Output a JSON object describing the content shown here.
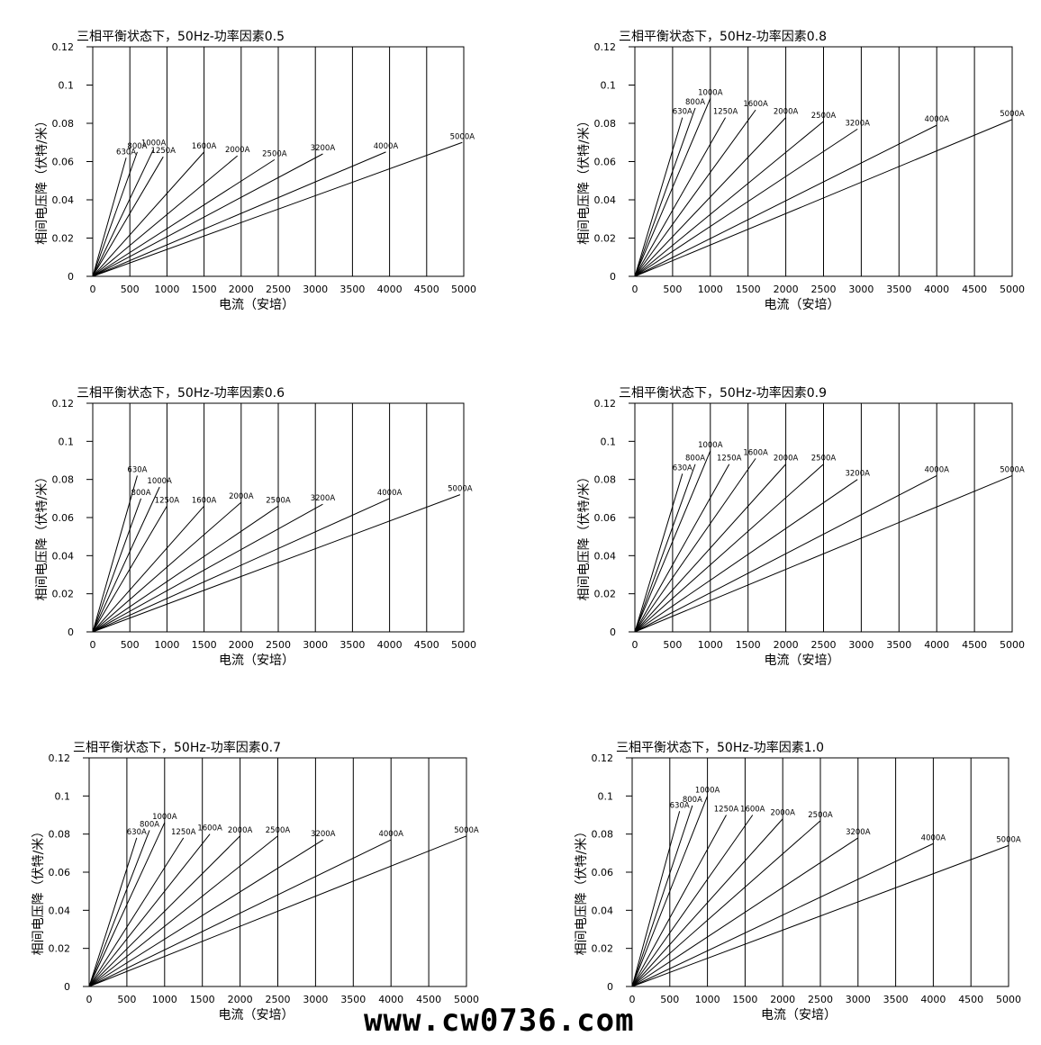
{
  "watermark": "www.cw0736.com",
  "chart_data": [
    {
      "type": "line",
      "title": "三相平衡状态下，50Hz-功率因素0.5",
      "xlabel": "电流（安培）",
      "ylabel": "相间电压降（伏特/米）",
      "xlim": [
        0,
        5000
      ],
      "ylim": [
        0,
        0.12
      ],
      "xticks": [
        0,
        500,
        1000,
        1500,
        2000,
        2500,
        3000,
        3500,
        4000,
        4500,
        5000
      ],
      "xtick_labels": [
        "0",
        "500",
        "1000",
        "1500",
        "2000",
        "2500",
        "3000",
        "3500",
        "4000",
        "4500",
        "5000"
      ],
      "yticks": [
        0,
        0.02,
        0.04,
        0.06,
        0.08,
        0.1,
        0.12
      ],
      "ytick_labels": [
        "0",
        "0.02",
        "0.04",
        "0.06",
        "0.08",
        "0.1",
        "0.12"
      ],
      "grid": "vertical",
      "series": [
        {
          "name": "630A",
          "x": [
            0,
            450
          ],
          "y": [
            0,
            0.062
          ]
        },
        {
          "name": "800A",
          "x": [
            0,
            600
          ],
          "y": [
            0,
            0.065
          ]
        },
        {
          "name": "1000A",
          "x": [
            0,
            820
          ],
          "y": [
            0,
            0.0665
          ]
        },
        {
          "name": "1250A",
          "x": [
            0,
            950
          ],
          "y": [
            0,
            0.0625
          ]
        },
        {
          "name": "1600A",
          "x": [
            0,
            1500
          ],
          "y": [
            0,
            0.065
          ]
        },
        {
          "name": "2000A",
          "x": [
            0,
            1950
          ],
          "y": [
            0,
            0.063
          ]
        },
        {
          "name": "2500A",
          "x": [
            0,
            2450
          ],
          "y": [
            0,
            0.061
          ]
        },
        {
          "name": "3200A",
          "x": [
            0,
            3100
          ],
          "y": [
            0,
            0.064
          ]
        },
        {
          "name": "4000A",
          "x": [
            0,
            3950
          ],
          "y": [
            0,
            0.065
          ]
        },
        {
          "name": "5000A",
          "x": [
            0,
            4980
          ],
          "y": [
            0,
            0.07
          ]
        }
      ]
    },
    {
      "type": "line",
      "title": "三相平衡状态下，50Hz-功率因素0.8",
      "xlabel": "电流（安培）",
      "ylabel": "相间电压降（伏特/米）",
      "xlim": [
        0,
        5000
      ],
      "ylim": [
        0,
        0.12
      ],
      "xticks": [
        0,
        500,
        1000,
        1500,
        2000,
        2500,
        3000,
        3500,
        4000,
        4500,
        5000
      ],
      "xtick_labels": [
        "0",
        "500",
        "1000",
        "1500",
        "2000",
        "2500",
        "3000",
        "3500",
        "4000",
        "4500",
        "5000"
      ],
      "yticks": [
        0,
        0.02,
        0.04,
        0.06,
        0.08,
        0.1,
        0.12
      ],
      "ytick_labels": [
        "0",
        "0.02",
        "0.04",
        "0.06",
        "0.08",
        "0.1",
        "0.12"
      ],
      "grid": "vertical",
      "series": [
        {
          "name": "630A",
          "x": [
            0,
            630
          ],
          "y": [
            0,
            0.083
          ]
        },
        {
          "name": "800A",
          "x": [
            0,
            800
          ],
          "y": [
            0,
            0.088
          ]
        },
        {
          "name": "1000A",
          "x": [
            0,
            1000
          ],
          "y": [
            0,
            0.093
          ]
        },
        {
          "name": "1250A",
          "x": [
            0,
            1200
          ],
          "y": [
            0,
            0.083
          ]
        },
        {
          "name": "1600A",
          "x": [
            0,
            1600
          ],
          "y": [
            0,
            0.087
          ]
        },
        {
          "name": "2000A",
          "x": [
            0,
            2000
          ],
          "y": [
            0,
            0.083
          ]
        },
        {
          "name": "2500A",
          "x": [
            0,
            2500
          ],
          "y": [
            0,
            0.081
          ]
        },
        {
          "name": "3200A",
          "x": [
            0,
            2950
          ],
          "y": [
            0,
            0.077
          ]
        },
        {
          "name": "4000A",
          "x": [
            0,
            4000
          ],
          "y": [
            0,
            0.079
          ]
        },
        {
          "name": "5000A",
          "x": [
            0,
            5000
          ],
          "y": [
            0,
            0.082
          ]
        }
      ]
    },
    {
      "type": "line",
      "title": "三相平衡状态下，50Hz-功率因素0.6",
      "xlabel": "电流（安培）",
      "ylabel": "相间电压降（伏特/米）",
      "xlim": [
        0,
        5000
      ],
      "ylim": [
        0,
        0.12
      ],
      "xticks": [
        0,
        500,
        1000,
        1500,
        2000,
        2500,
        3000,
        3500,
        4000,
        4500,
        5000
      ],
      "xtick_labels": [
        "0",
        "500",
        "1000",
        "1500",
        "2000",
        "2500",
        "3000",
        "3500",
        "4000",
        "4500",
        "5000"
      ],
      "yticks": [
        0,
        0.02,
        0.04,
        0.06,
        0.08,
        0.1,
        0.12
      ],
      "ytick_labels": [
        "0",
        "0.02",
        "0.04",
        "0.06",
        "0.08",
        "0.1",
        "0.12"
      ],
      "grid": "vertical",
      "series": [
        {
          "name": "630A",
          "x": [
            0,
            600
          ],
          "y": [
            0,
            0.082
          ]
        },
        {
          "name": "800A",
          "x": [
            0,
            650
          ],
          "y": [
            0,
            0.07
          ]
        },
        {
          "name": "1000A",
          "x": [
            0,
            900
          ],
          "y": [
            0,
            0.076
          ]
        },
        {
          "name": "1250A",
          "x": [
            0,
            1000
          ],
          "y": [
            0,
            0.066
          ]
        },
        {
          "name": "1600A",
          "x": [
            0,
            1500
          ],
          "y": [
            0,
            0.066
          ]
        },
        {
          "name": "2000A",
          "x": [
            0,
            2000
          ],
          "y": [
            0,
            0.068
          ]
        },
        {
          "name": "2500A",
          "x": [
            0,
            2500
          ],
          "y": [
            0,
            0.066
          ]
        },
        {
          "name": "3200A",
          "x": [
            0,
            3100
          ],
          "y": [
            0,
            0.067
          ]
        },
        {
          "name": "4000A",
          "x": [
            0,
            4000
          ],
          "y": [
            0,
            0.07
          ]
        },
        {
          "name": "5000A",
          "x": [
            0,
            4950
          ],
          "y": [
            0,
            0.072
          ]
        }
      ]
    },
    {
      "type": "line",
      "title": "三相平衡状态下，50Hz-功率因素0.9",
      "xlabel": "电流（安培）",
      "ylabel": "相间电压降（伏特/米）",
      "xlim": [
        0,
        5000
      ],
      "ylim": [
        0,
        0.12
      ],
      "xticks": [
        0,
        500,
        1000,
        1500,
        2000,
        2500,
        3000,
        3500,
        4000,
        4500,
        5000
      ],
      "xtick_labels": [
        "0",
        "500",
        "1000",
        "1500",
        "2000",
        "2500",
        "3000",
        "3500",
        "4000",
        "4500",
        "5000"
      ],
      "yticks": [
        0,
        0.02,
        0.04,
        0.06,
        0.08,
        0.1,
        0.12
      ],
      "ytick_labels": [
        "0",
        "0.02",
        "0.04",
        "0.06",
        "0.08",
        "0.1",
        "0.12"
      ],
      "grid": "vertical",
      "series": [
        {
          "name": "630A",
          "x": [
            0,
            630
          ],
          "y": [
            0,
            0.083
          ]
        },
        {
          "name": "800A",
          "x": [
            0,
            800
          ],
          "y": [
            0,
            0.088
          ]
        },
        {
          "name": "1000A",
          "x": [
            0,
            1000
          ],
          "y": [
            0,
            0.095
          ]
        },
        {
          "name": "1250A",
          "x": [
            0,
            1250
          ],
          "y": [
            0,
            0.088
          ]
        },
        {
          "name": "1600A",
          "x": [
            0,
            1600
          ],
          "y": [
            0,
            0.091
          ]
        },
        {
          "name": "2000A",
          "x": [
            0,
            2000
          ],
          "y": [
            0,
            0.088
          ]
        },
        {
          "name": "2500A",
          "x": [
            0,
            2500
          ],
          "y": [
            0,
            0.088
          ]
        },
        {
          "name": "3200A",
          "x": [
            0,
            2950
          ],
          "y": [
            0,
            0.08
          ]
        },
        {
          "name": "4000A",
          "x": [
            0,
            4000
          ],
          "y": [
            0,
            0.082
          ]
        },
        {
          "name": "5000A",
          "x": [
            0,
            5000
          ],
          "y": [
            0,
            0.082
          ]
        }
      ]
    },
    {
      "type": "line",
      "title": "三相平衡状态下，50Hz-功率因素0.7",
      "xlabel": "电流（安培）",
      "ylabel": "相间电压降（伏特/米）",
      "xlim": [
        0,
        5000
      ],
      "ylim": [
        0,
        0.12
      ],
      "xticks": [
        0,
        500,
        1000,
        1500,
        2000,
        2500,
        3000,
        3500,
        4000,
        4500,
        5000
      ],
      "xtick_labels": [
        "0",
        "500",
        "1000",
        "1500",
        "2000",
        "2500",
        "3000",
        "3500",
        "4000",
        "4500",
        "5000"
      ],
      "yticks": [
        0,
        0.02,
        0.04,
        0.06,
        0.08,
        0.1,
        0.12
      ],
      "ytick_labels": [
        "0",
        "0.02",
        "0.04",
        "0.06",
        "0.08",
        "0.1",
        "0.12"
      ],
      "grid": "vertical",
      "series": [
        {
          "name": "630A",
          "x": [
            0,
            630
          ],
          "y": [
            0,
            0.078
          ]
        },
        {
          "name": "800A",
          "x": [
            0,
            800
          ],
          "y": [
            0,
            0.082
          ]
        },
        {
          "name": "1000A",
          "x": [
            0,
            1000
          ],
          "y": [
            0,
            0.086
          ]
        },
        {
          "name": "1250A",
          "x": [
            0,
            1250
          ],
          "y": [
            0,
            0.078
          ]
        },
        {
          "name": "1600A",
          "x": [
            0,
            1600
          ],
          "y": [
            0,
            0.08
          ]
        },
        {
          "name": "2000A",
          "x": [
            0,
            2000
          ],
          "y": [
            0,
            0.079
          ]
        },
        {
          "name": "2500A",
          "x": [
            0,
            2500
          ],
          "y": [
            0,
            0.079
          ]
        },
        {
          "name": "3200A",
          "x": [
            0,
            3100
          ],
          "y": [
            0,
            0.077
          ]
        },
        {
          "name": "4000A",
          "x": [
            0,
            4000
          ],
          "y": [
            0,
            0.077
          ]
        },
        {
          "name": "5000A",
          "x": [
            0,
            5000
          ],
          "y": [
            0,
            0.079
          ]
        }
      ]
    },
    {
      "type": "line",
      "title": "三相平衡状态下，50Hz-功率因素1.0",
      "xlabel": "电流（安培）",
      "ylabel": "相间电压降（伏特/米）",
      "xlim": [
        0,
        5000
      ],
      "ylim": [
        0,
        0.12
      ],
      "xticks": [
        0,
        500,
        1000,
        1500,
        2000,
        2500,
        3000,
        3500,
        4000,
        4500,
        5000
      ],
      "xtick_labels": [
        "0",
        "500",
        "1000",
        "1500",
        "2000",
        "2500",
        "3000",
        "3500",
        "4000",
        "4500",
        "5000"
      ],
      "yticks": [
        0,
        0.02,
        0.04,
        0.06,
        0.08,
        0.1,
        0.12
      ],
      "ytick_labels": [
        "0",
        "0.02",
        "0.04",
        "0.06",
        "0.08",
        "0.1",
        "0.12"
      ],
      "grid": "vertical",
      "series": [
        {
          "name": "630A",
          "x": [
            0,
            630
          ],
          "y": [
            0,
            0.092
          ]
        },
        {
          "name": "800A",
          "x": [
            0,
            800
          ],
          "y": [
            0,
            0.095
          ]
        },
        {
          "name": "1000A",
          "x": [
            0,
            1000
          ],
          "y": [
            0,
            0.1
          ]
        },
        {
          "name": "1250A",
          "x": [
            0,
            1250
          ],
          "y": [
            0,
            0.09
          ]
        },
        {
          "name": "1600A",
          "x": [
            0,
            1600
          ],
          "y": [
            0,
            0.09
          ]
        },
        {
          "name": "2000A",
          "x": [
            0,
            2000
          ],
          "y": [
            0,
            0.088
          ]
        },
        {
          "name": "2500A",
          "x": [
            0,
            2500
          ],
          "y": [
            0,
            0.087
          ]
        },
        {
          "name": "3200A",
          "x": [
            0,
            3000
          ],
          "y": [
            0,
            0.078
          ]
        },
        {
          "name": "4000A",
          "x": [
            0,
            4000
          ],
          "y": [
            0,
            0.075
          ]
        },
        {
          "name": "5000A",
          "x": [
            0,
            5000
          ],
          "y": [
            0,
            0.074
          ]
        }
      ]
    }
  ]
}
